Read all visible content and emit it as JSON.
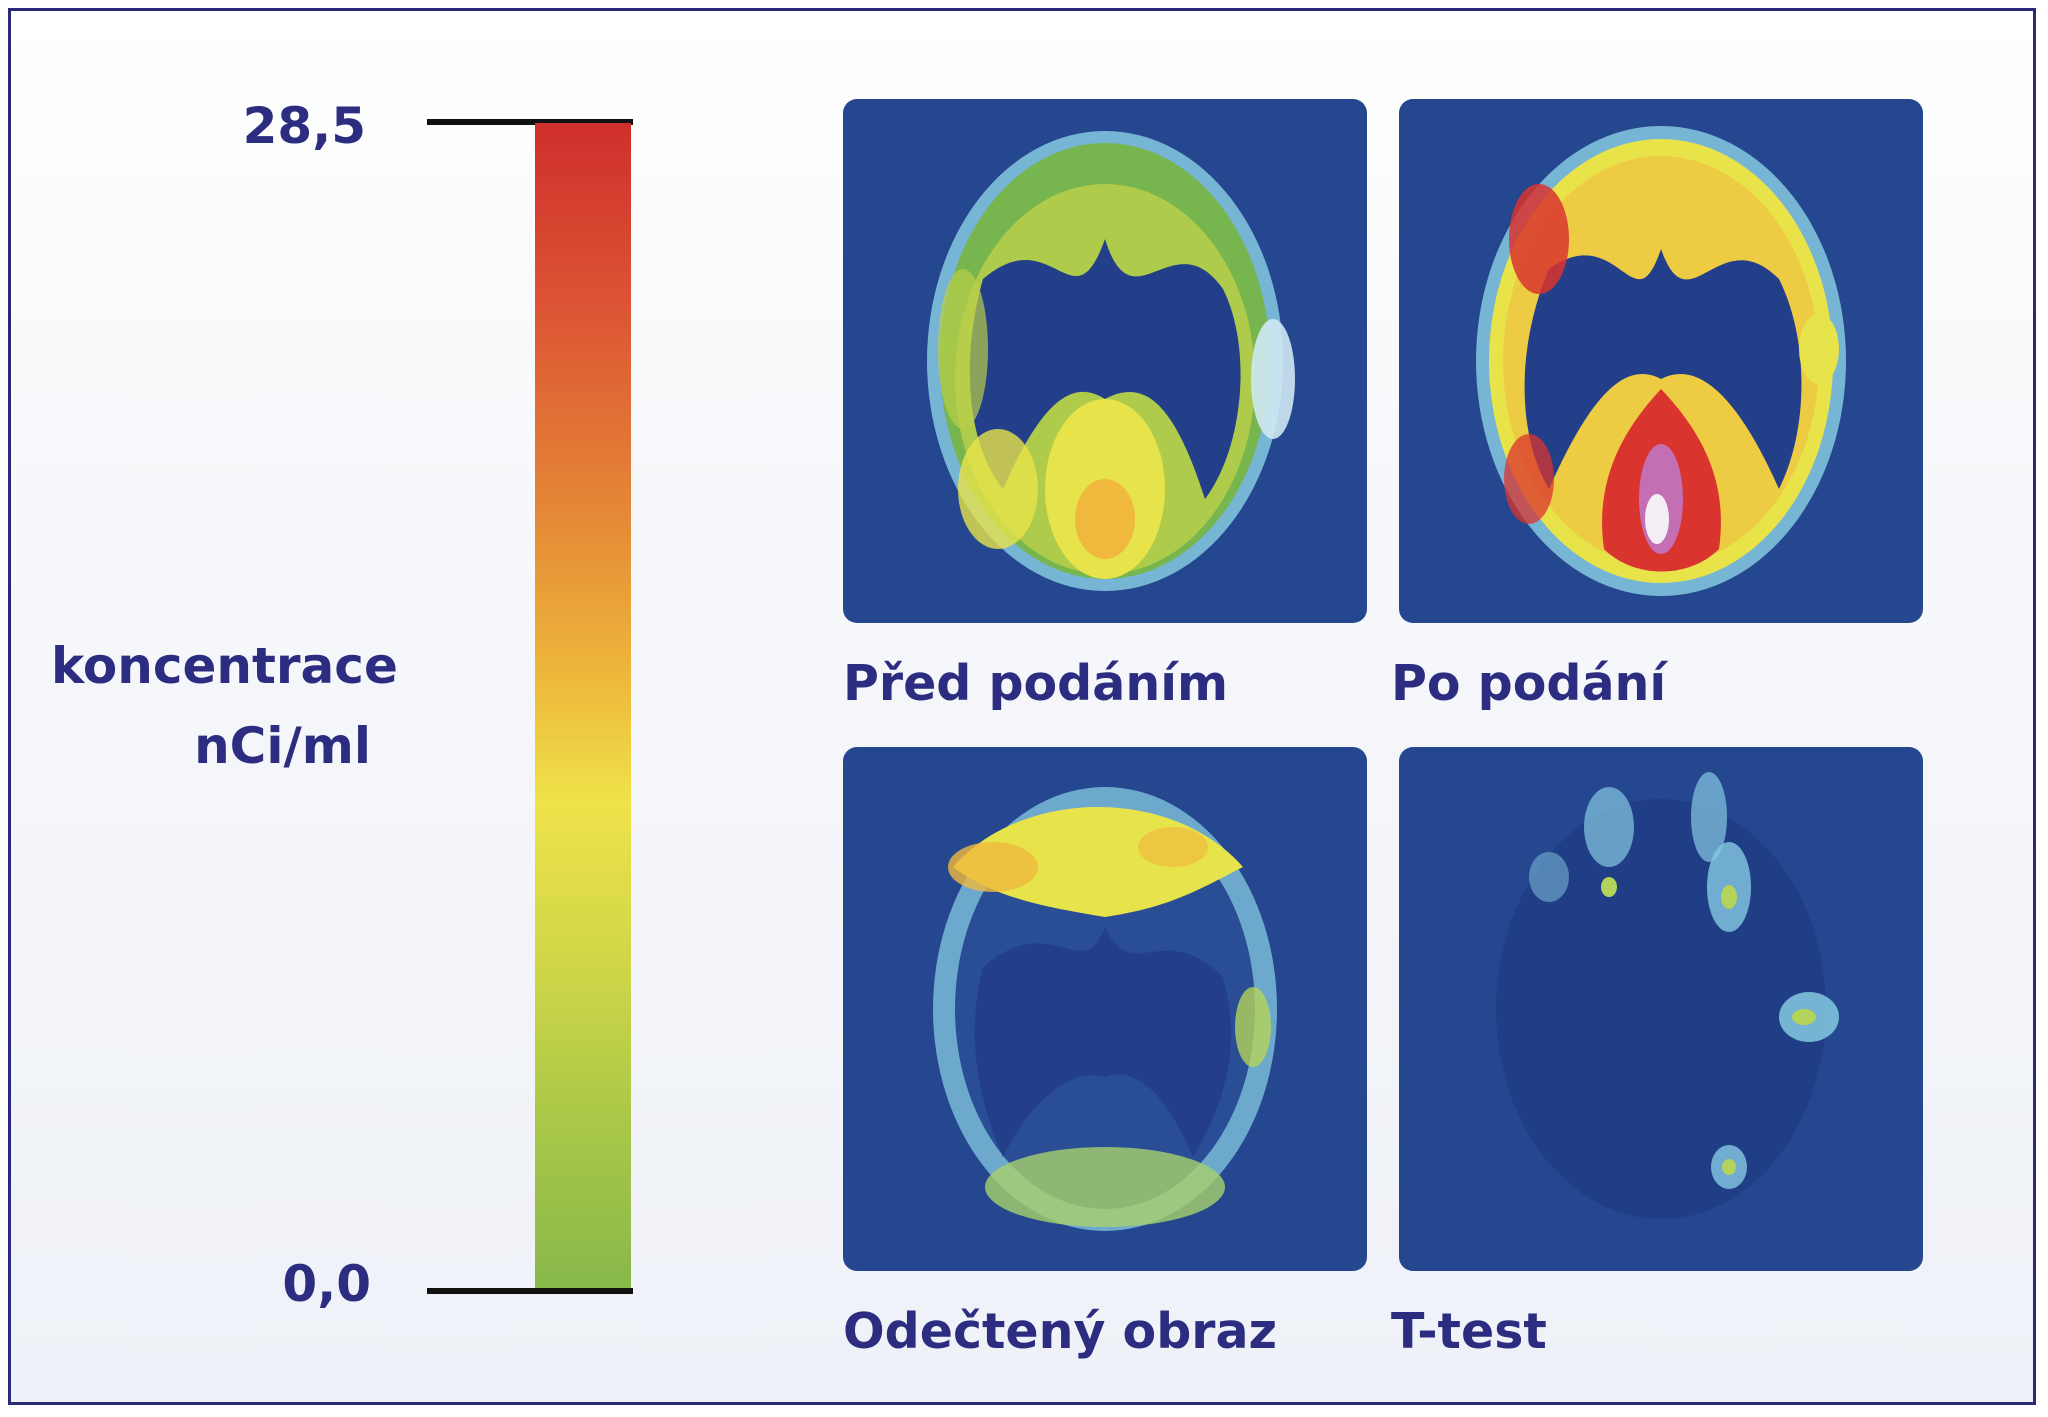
{
  "scale": {
    "max_label": "28,5",
    "min_label": "0,0",
    "unit_line1": "koncentrace",
    "unit_line2": "nCi/ml",
    "max_value": 28.5,
    "min_value": 0.0,
    "colors": [
      "#cf2f2c",
      "#e58a36",
      "#efe24a",
      "#86b84a"
    ]
  },
  "panels": [
    {
      "caption": "Před podáním",
      "image": "pet-brain-scan-before"
    },
    {
      "caption": "Po podání",
      "image": "pet-brain-scan-after"
    },
    {
      "caption": "Odečtený obraz",
      "image": "pet-brain-scan-subtracted"
    },
    {
      "caption": "T-test",
      "image": "pet-brain-scan-t-test"
    }
  ],
  "colors": {
    "frame_border": "#2b2a78",
    "text": "#2c2c80",
    "panel_background": "#24478f"
  }
}
